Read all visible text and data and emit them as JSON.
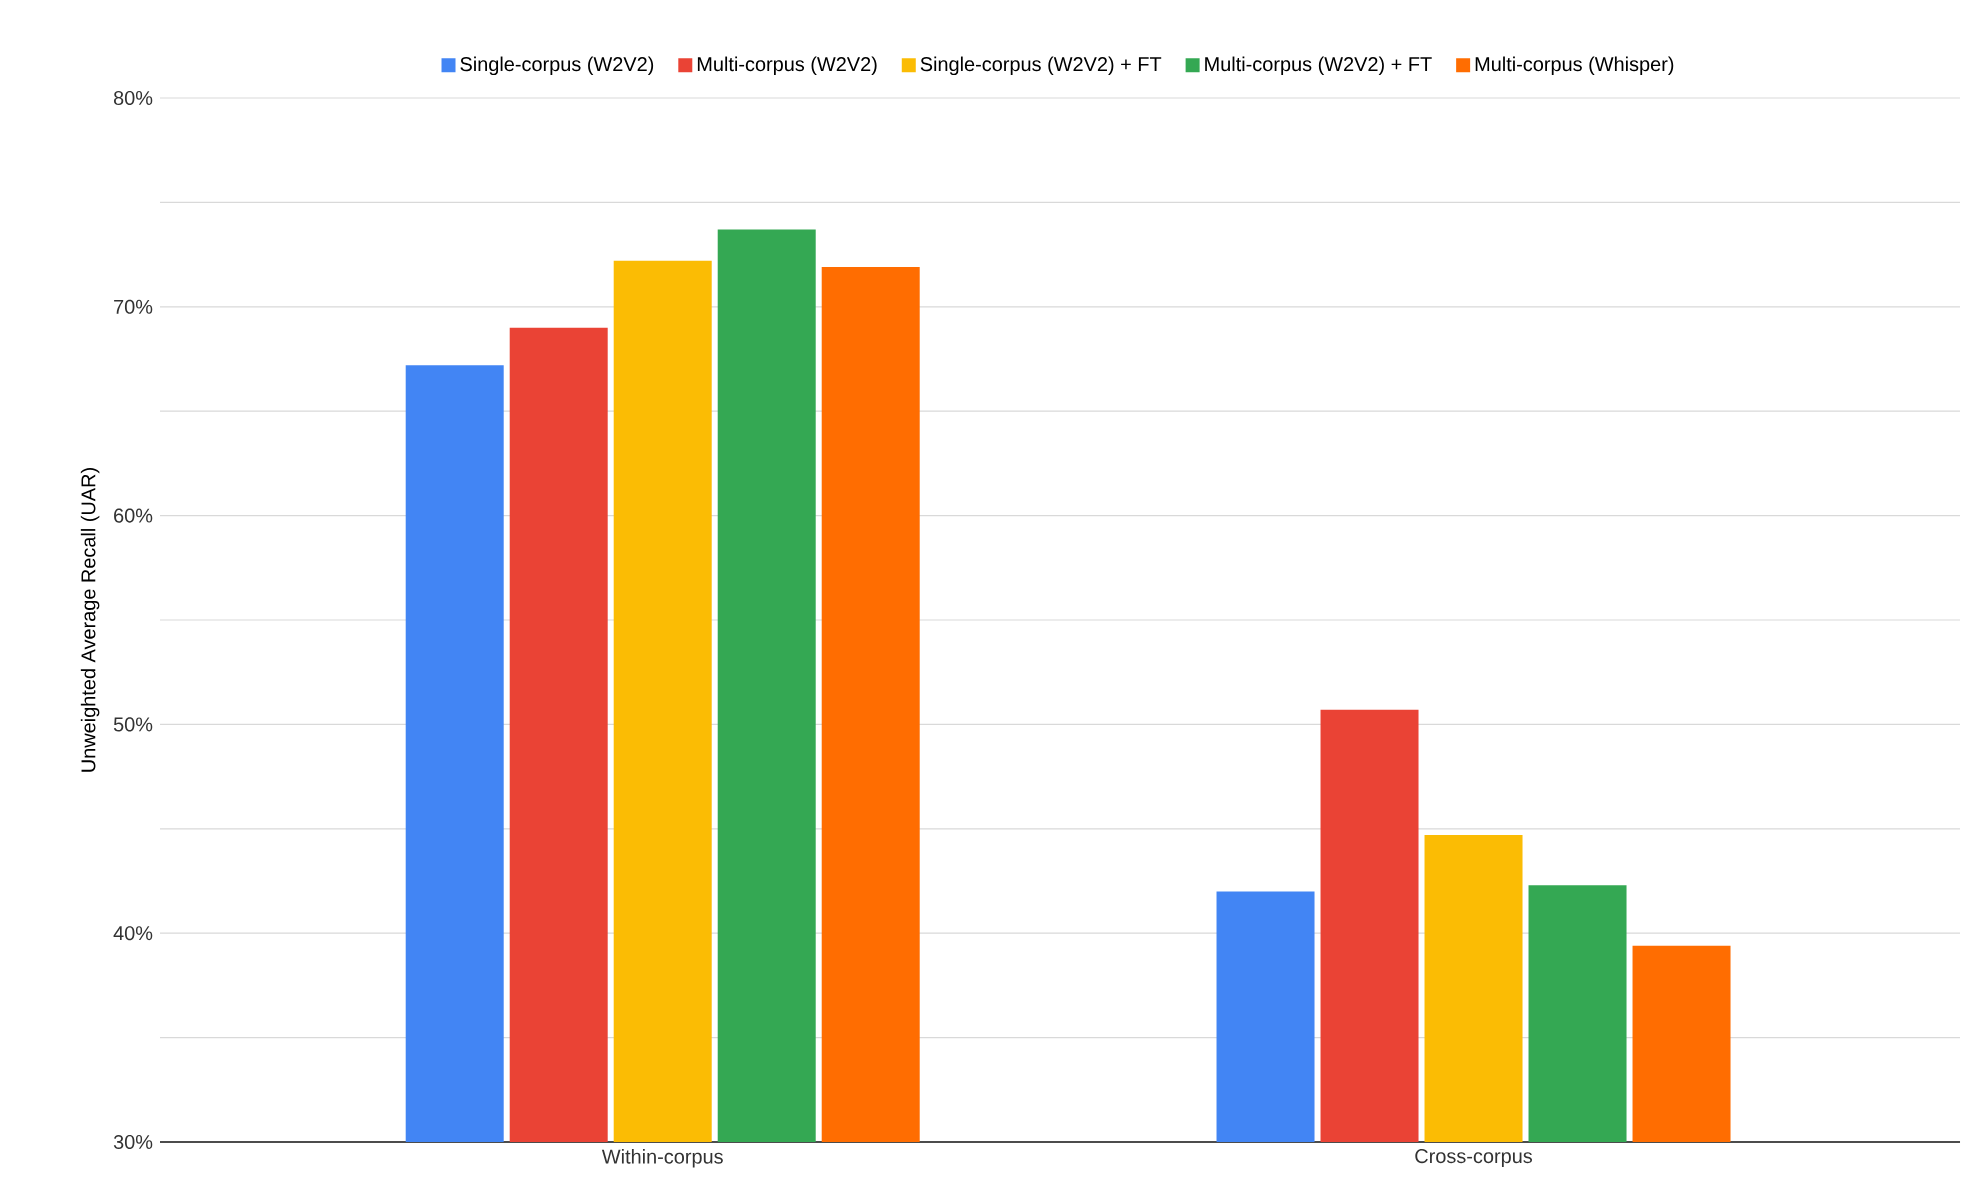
{
  "chart_data": {
    "type": "bar",
    "ylabel": "Unweighted Average Recall (UAR)",
    "categories": [
      "Within-corpus",
      "Cross-corpus"
    ],
    "series": [
      {
        "name": "Single-corpus (W2V2)",
        "color": "#4285f4",
        "values": [
          67.2,
          42.0
        ]
      },
      {
        "name": "Multi-corpus (W2V2)",
        "color": "#ea4335",
        "values": [
          69.0,
          50.7
        ]
      },
      {
        "name": "Single-corpus (W2V2) + FT",
        "color": "#fbbc04",
        "values": [
          72.2,
          44.7
        ]
      },
      {
        "name": "Multi-corpus (W2V2) + FT",
        "color": "#34a853",
        "values": [
          73.7,
          42.3
        ]
      },
      {
        "name": "Multi-corpus (Whisper)",
        "color": "#ff6d01",
        "values": [
          71.9,
          39.4
        ]
      }
    ],
    "ylim": [
      30,
      80
    ],
    "yticks": [
      {
        "value": 30,
        "label": "30%"
      },
      {
        "value": 35,
        "label": null
      },
      {
        "value": 40,
        "label": "40%"
      },
      {
        "value": 45,
        "label": null
      },
      {
        "value": 50,
        "label": "50%"
      },
      {
        "value": 55,
        "label": null
      },
      {
        "value": 60,
        "label": "60%"
      },
      {
        "value": 65,
        "label": null
      },
      {
        "value": 70,
        "label": "70%"
      },
      {
        "value": 75,
        "label": null
      },
      {
        "value": 80,
        "label": "80%"
      }
    ],
    "grid": "y",
    "legend": "top"
  }
}
